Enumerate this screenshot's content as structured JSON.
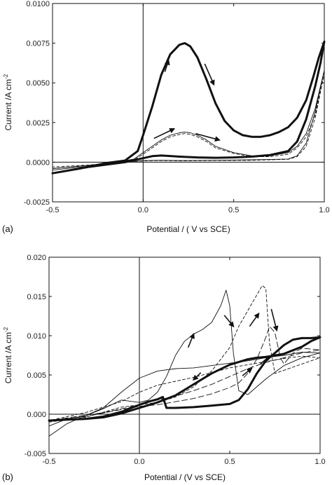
{
  "chart_data": [
    {
      "type": "line",
      "panel_label": "(a)",
      "xlabel": "Potential / ( V vs SCE)",
      "ylabel": "Current /A cm",
      "ylabel_superscript": "-2",
      "xlim": [
        -0.5,
        1.0
      ],
      "ylim": [
        -0.0025,
        0.01
      ],
      "x_ticks": [
        -0.5,
        0.0,
        0.5,
        1.0
      ],
      "x_tick_labels": [
        "-0.5",
        "0.0",
        "0.5",
        "1.0"
      ],
      "y_ticks": [
        -0.0025,
        0.0,
        0.0025,
        0.005,
        0.0075,
        0.01
      ],
      "y_tick_labels": [
        "-0.0025",
        "0.0000",
        "0.0025",
        "0.0050",
        "0.0075",
        "0.0100"
      ],
      "zero_lines": true,
      "series": [
        {
          "style": "thick-solid",
          "x": [
            -0.5,
            -0.35,
            -0.2,
            -0.1,
            -0.03,
            0.0,
            0.05,
            0.1,
            0.15,
            0.2,
            0.23,
            0.26,
            0.3,
            0.35,
            0.4,
            0.45,
            0.5,
            0.55,
            0.6,
            0.65,
            0.7,
            0.75,
            0.8,
            0.85,
            0.9,
            0.94,
            0.97,
            1.0,
            0.98,
            0.95,
            0.9,
            0.85,
            0.8,
            0.7,
            0.6,
            0.5,
            0.4,
            0.3,
            0.2,
            0.1,
            0.05,
            0.0,
            -0.1,
            -0.2,
            -0.3,
            -0.4,
            -0.5
          ],
          "y": [
            -0.0007,
            -0.0004,
            -5e-05,
            0.0001,
            0.0007,
            0.0017,
            0.0035,
            0.0055,
            0.0068,
            0.0074,
            0.0075,
            0.0073,
            0.0066,
            0.0052,
            0.0037,
            0.0026,
            0.002,
            0.0017,
            0.0016,
            0.0016,
            0.0017,
            0.0019,
            0.0022,
            0.0028,
            0.0039,
            0.0054,
            0.0066,
            0.0076,
            0.0063,
            0.0048,
            0.0027,
            0.0013,
            0.0007,
            0.00045,
            0.00035,
            0.0003,
            0.00028,
            0.0003,
            0.00035,
            0.00042,
            0.00038,
            0.00025,
            0.0,
            -0.00015,
            -0.0003,
            -0.0005,
            -0.0007
          ]
        },
        {
          "style": "thin-solid",
          "x": [
            -0.5,
            -0.3,
            -0.15,
            -0.05,
            0.0,
            0.05,
            0.1,
            0.15,
            0.2,
            0.23,
            0.26,
            0.3,
            0.35,
            0.4,
            0.5,
            0.6,
            0.7,
            0.8,
            0.85,
            0.9,
            0.95,
            1.0,
            0.95,
            0.9,
            0.85,
            0.8,
            0.6,
            0.4,
            0.2,
            0.1,
            0.0,
            -0.1,
            -0.2,
            -0.3,
            -0.5
          ],
          "y": [
            -0.0005,
            -0.00025,
            0.0,
            0.0002,
            0.0006,
            0.001,
            0.0014,
            0.0017,
            0.00185,
            0.0019,
            0.00185,
            0.0017,
            0.0014,
            0.001,
            0.0006,
            0.0004,
            0.0004,
            0.0006,
            0.001,
            0.0018,
            0.0034,
            0.0058,
            0.0032,
            0.0012,
            0.0004,
            0.0002,
            0.00015,
            0.00012,
            0.0001,
            0.00012,
            0.0001,
            0.0,
            -0.0001,
            -0.0002,
            -0.0004
          ]
        },
        {
          "style": "thin-dashed",
          "x": [
            -0.5,
            -0.3,
            -0.15,
            -0.05,
            0.0,
            0.05,
            0.1,
            0.15,
            0.2,
            0.23,
            0.26,
            0.3,
            0.35,
            0.4,
            0.5,
            0.6,
            0.7,
            0.8,
            0.85,
            0.9,
            0.95,
            1.0,
            0.95,
            0.9,
            0.85,
            0.8,
            0.6,
            0.4,
            0.2,
            0.1,
            0.0,
            -0.1,
            -0.2,
            -0.3,
            -0.5
          ],
          "y": [
            -0.0004,
            -0.0002,
            0.0,
            0.00015,
            0.0005,
            0.0009,
            0.0013,
            0.0016,
            0.00175,
            0.0018,
            0.00175,
            0.0016,
            0.0013,
            0.0009,
            0.00055,
            0.00035,
            0.00035,
            0.0005,
            0.0009,
            0.0016,
            0.003,
            0.0056,
            0.0028,
            0.001,
            0.00035,
            0.00018,
            0.00012,
            0.0001,
            8e-05,
            0.0001,
            8e-05,
            0.0,
            -8e-05,
            -0.00018,
            -0.0003
          ]
        }
      ],
      "annotations": [
        {
          "type": "arrow",
          "from": [
            0.12,
            0.0057
          ],
          "to": [
            0.14,
            0.0064
          ]
        },
        {
          "type": "arrow",
          "from": [
            0.34,
            0.0062
          ],
          "to": [
            0.39,
            0.0049
          ]
        },
        {
          "type": "arrow",
          "from": [
            0.06,
            0.0015
          ],
          "to": [
            0.17,
            0.0021
          ]
        },
        {
          "type": "arrow",
          "from": [
            0.29,
            0.0018
          ],
          "to": [
            0.42,
            0.0014
          ]
        }
      ]
    },
    {
      "type": "line",
      "panel_label": "(b)",
      "xlabel": "Potential / (V vs SCE)",
      "ylabel": "Current /A cm",
      "ylabel_superscript": "-2",
      "xlim": [
        -0.5,
        1.0
      ],
      "ylim": [
        -0.005,
        0.02
      ],
      "x_ticks": [
        -0.5,
        0.0,
        0.5,
        1.0
      ],
      "x_tick_labels": [
        "-0.5",
        "0.0",
        "0.5",
        "1.0"
      ],
      "y_ticks": [
        -0.005,
        0.0,
        0.005,
        0.01,
        0.015,
        0.02
      ],
      "y_tick_labels": [
        "-0.005",
        "0.000",
        "0.005",
        "0.010",
        "0.015",
        "0.020"
      ],
      "zero_lines": true,
      "series": [
        {
          "style": "thick-solid",
          "x": [
            -0.5,
            -0.4,
            -0.3,
            -0.2,
            -0.1,
            0.0,
            0.05,
            0.1,
            0.13,
            0.15,
            0.2,
            0.3,
            0.4,
            0.5,
            0.55,
            0.6,
            0.65,
            0.7,
            0.75,
            0.8,
            0.85,
            0.9,
            0.95,
            1.0,
            0.95,
            0.9,
            0.8,
            0.7,
            0.65,
            0.6,
            0.5,
            0.4,
            0.3,
            0.2,
            0.1,
            0.0,
            -0.1,
            -0.2,
            -0.3,
            -0.4,
            -0.5
          ],
          "y": [
            -0.0008,
            -0.0007,
            -0.0006,
            -0.0003,
            0.0003,
            0.0012,
            0.0016,
            0.0019,
            0.0022,
            0.0008,
            0.0008,
            0.0009,
            0.0011,
            0.0013,
            0.0018,
            0.0032,
            0.0052,
            0.0068,
            0.0078,
            0.0088,
            0.0095,
            0.0097,
            0.0097,
            0.0098,
            0.0093,
            0.0086,
            0.0077,
            0.0073,
            0.0072,
            0.007,
            0.0063,
            0.0052,
            0.0038,
            0.0024,
            0.0015,
            0.0008,
            0.0001,
            -0.0004,
            -0.0006,
            -0.0007,
            -0.0008
          ]
        },
        {
          "style": "thin-solid",
          "x": [
            -0.5,
            -0.4,
            -0.3,
            -0.2,
            -0.1,
            0.0,
            0.05,
            0.1,
            0.15,
            0.2,
            0.25,
            0.3,
            0.35,
            0.4,
            0.45,
            0.48,
            0.5,
            0.52,
            0.55,
            0.6,
            0.7,
            0.8,
            0.9,
            1.0,
            0.9,
            0.8,
            0.7,
            0.6,
            0.5,
            0.4,
            0.3,
            0.2,
            0.1,
            0.0,
            -0.1,
            -0.2,
            -0.3,
            -0.4,
            -0.5
          ],
          "y": [
            -0.0015,
            -0.0006,
            -0.0002,
            0.0007,
            0.0018,
            0.0015,
            0.0018,
            0.0028,
            0.0048,
            0.0075,
            0.0093,
            0.0102,
            0.0108,
            0.0117,
            0.0138,
            0.0158,
            0.0138,
            0.0078,
            0.003,
            0.0025,
            0.0045,
            0.0062,
            0.0072,
            0.0078,
            0.0079,
            0.0075,
            0.0072,
            0.0068,
            0.0065,
            0.0062,
            0.0059,
            0.0058,
            0.0055,
            0.0046,
            0.0028,
            0.0008,
            -0.0002,
            -0.0012,
            -0.0028
          ]
        },
        {
          "style": "thin-dashed",
          "x": [
            -0.5,
            -0.3,
            -0.1,
            0.0,
            0.1,
            0.2,
            0.3,
            0.4,
            0.5,
            0.55,
            0.6,
            0.65,
            0.68,
            0.7,
            0.72,
            0.75,
            0.8,
            0.9,
            1.0,
            0.9,
            0.8,
            0.7,
            0.6,
            0.5,
            0.4,
            0.3,
            0.2,
            0.1,
            0.0,
            -0.1,
            -0.3,
            -0.5
          ],
          "y": [
            -0.001,
            -0.0004,
            0.0009,
            0.0012,
            0.0015,
            0.0022,
            0.0035,
            0.0055,
            0.0085,
            0.0112,
            0.0132,
            0.0152,
            0.0164,
            0.016,
            0.009,
            0.0052,
            0.0056,
            0.0064,
            0.0072,
            0.0074,
            0.0071,
            0.0067,
            0.0063,
            0.0059,
            0.0053,
            0.0047,
            0.0042,
            0.0037,
            0.0028,
            0.0016,
            0.0002,
            -0.0008
          ]
        },
        {
          "style": "thin-long-dashed",
          "x": [
            -0.5,
            -0.3,
            -0.1,
            0.0,
            0.1,
            0.2,
            0.3,
            0.4,
            0.5,
            0.55,
            0.6,
            0.65,
            0.7,
            0.72,
            0.75,
            0.78,
            0.8,
            0.85,
            0.9,
            1.0,
            0.9,
            0.8,
            0.7,
            0.6,
            0.5,
            0.4,
            0.3,
            0.2,
            0.1,
            0.0,
            -0.2,
            -0.5
          ],
          "y": [
            -0.0008,
            -0.0003,
            0.0006,
            0.001,
            0.0012,
            0.0016,
            0.002,
            0.0026,
            0.0034,
            0.004,
            0.0052,
            0.007,
            0.0098,
            0.0112,
            0.0104,
            0.0072,
            0.0064,
            0.0078,
            0.0084,
            0.0082,
            0.0078,
            0.0072,
            0.0066,
            0.0058,
            0.0048,
            0.0038,
            0.003,
            0.0023,
            0.0018,
            0.0012,
            0.0002,
            -0.0008
          ]
        }
      ],
      "annotations": [
        {
          "type": "arrow",
          "from": [
            0.27,
            0.0085
          ],
          "to": [
            0.3,
            0.0102
          ]
        },
        {
          "type": "arrow",
          "from": [
            0.47,
            0.0126
          ],
          "to": [
            0.52,
            0.0112
          ]
        },
        {
          "type": "arrow",
          "from": [
            0.61,
            0.0112
          ],
          "to": [
            0.66,
            0.0128
          ]
        },
        {
          "type": "arrow",
          "from": [
            0.73,
            0.0134
          ],
          "to": [
            0.76,
            0.0107
          ]
        },
        {
          "type": "arrow",
          "from": [
            0.34,
            0.0053
          ],
          "to": [
            0.3,
            0.0044
          ]
        },
        {
          "type": "arrow",
          "from": [
            0.57,
            0.0049
          ],
          "to": [
            0.62,
            0.0058
          ]
        },
        {
          "type": "arrow",
          "from": [
            0.67,
            0.0064
          ],
          "to": [
            0.72,
            0.0074
          ]
        }
      ]
    }
  ]
}
